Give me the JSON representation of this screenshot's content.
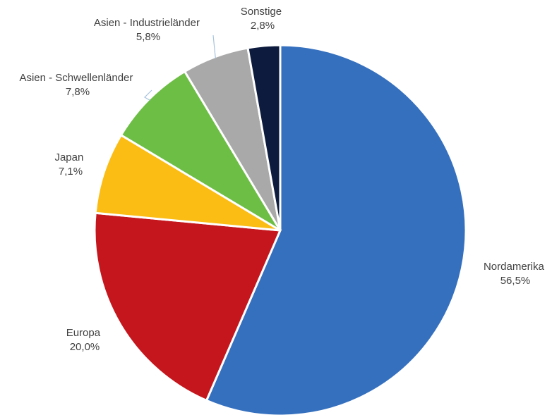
{
  "chart_data": {
    "type": "pie",
    "title": "",
    "start_angle_deg": 0,
    "direction": "clockwise",
    "slices": [
      {
        "key": "nordamerika",
        "label": "Nordamerika",
        "value": 56.5,
        "value_label": "56,5%",
        "color": "#3570BF"
      },
      {
        "key": "europa",
        "label": "Europa",
        "value": 20.0,
        "value_label": "20,0%",
        "color": "#C4161C"
      },
      {
        "key": "japan",
        "label": "Japan",
        "value": 7.1,
        "value_label": "7,1%",
        "color": "#FBBC14"
      },
      {
        "key": "asien-schwellenlaender",
        "label": "Asien - Schwellenländer",
        "value": 7.8,
        "value_label": "7,8%",
        "color": "#6DBE45"
      },
      {
        "key": "asien-industrielaender",
        "label": "Asien - Industrieländer",
        "value": 5.8,
        "value_label": "5,8%",
        "color": "#A9A9A9"
      },
      {
        "key": "sonstige",
        "label": "Sonstige",
        "value": 2.8,
        "value_label": "2,8%",
        "color": "#0D1B3E"
      }
    ]
  }
}
